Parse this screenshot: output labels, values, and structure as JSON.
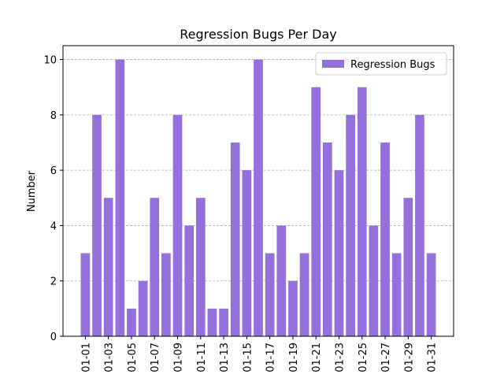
{
  "chart_data": {
    "type": "bar",
    "title": "Regression Bugs Per Day",
    "y_label": "Number",
    "categories": [
      "01-01",
      null,
      "01-03",
      null,
      "01-05",
      null,
      "01-07",
      null,
      "01-09",
      null,
      "01-11",
      null,
      "01-13",
      null,
      "01-15",
      null,
      "01-17",
      null,
      "01-19",
      null,
      "01-21",
      null,
      "01-23",
      null,
      "01-25",
      null,
      "01-27",
      null,
      "01-29",
      null,
      "01-31"
    ],
    "series": [
      {
        "name": "Regression Bugs",
        "color": "#9370db",
        "values": [
          3,
          8,
          5,
          10,
          1,
          2,
          5,
          3,
          8,
          4,
          5,
          1,
          1,
          7,
          6,
          10,
          3,
          4,
          2,
          3,
          9,
          7,
          6,
          8,
          9,
          4,
          7,
          3,
          5,
          8,
          3
        ]
      }
    ],
    "ylim": [
      0,
      10.5
    ],
    "yticks": [
      0,
      2,
      4,
      6,
      8,
      10
    ],
    "grid": true,
    "legend": "upper right"
  }
}
